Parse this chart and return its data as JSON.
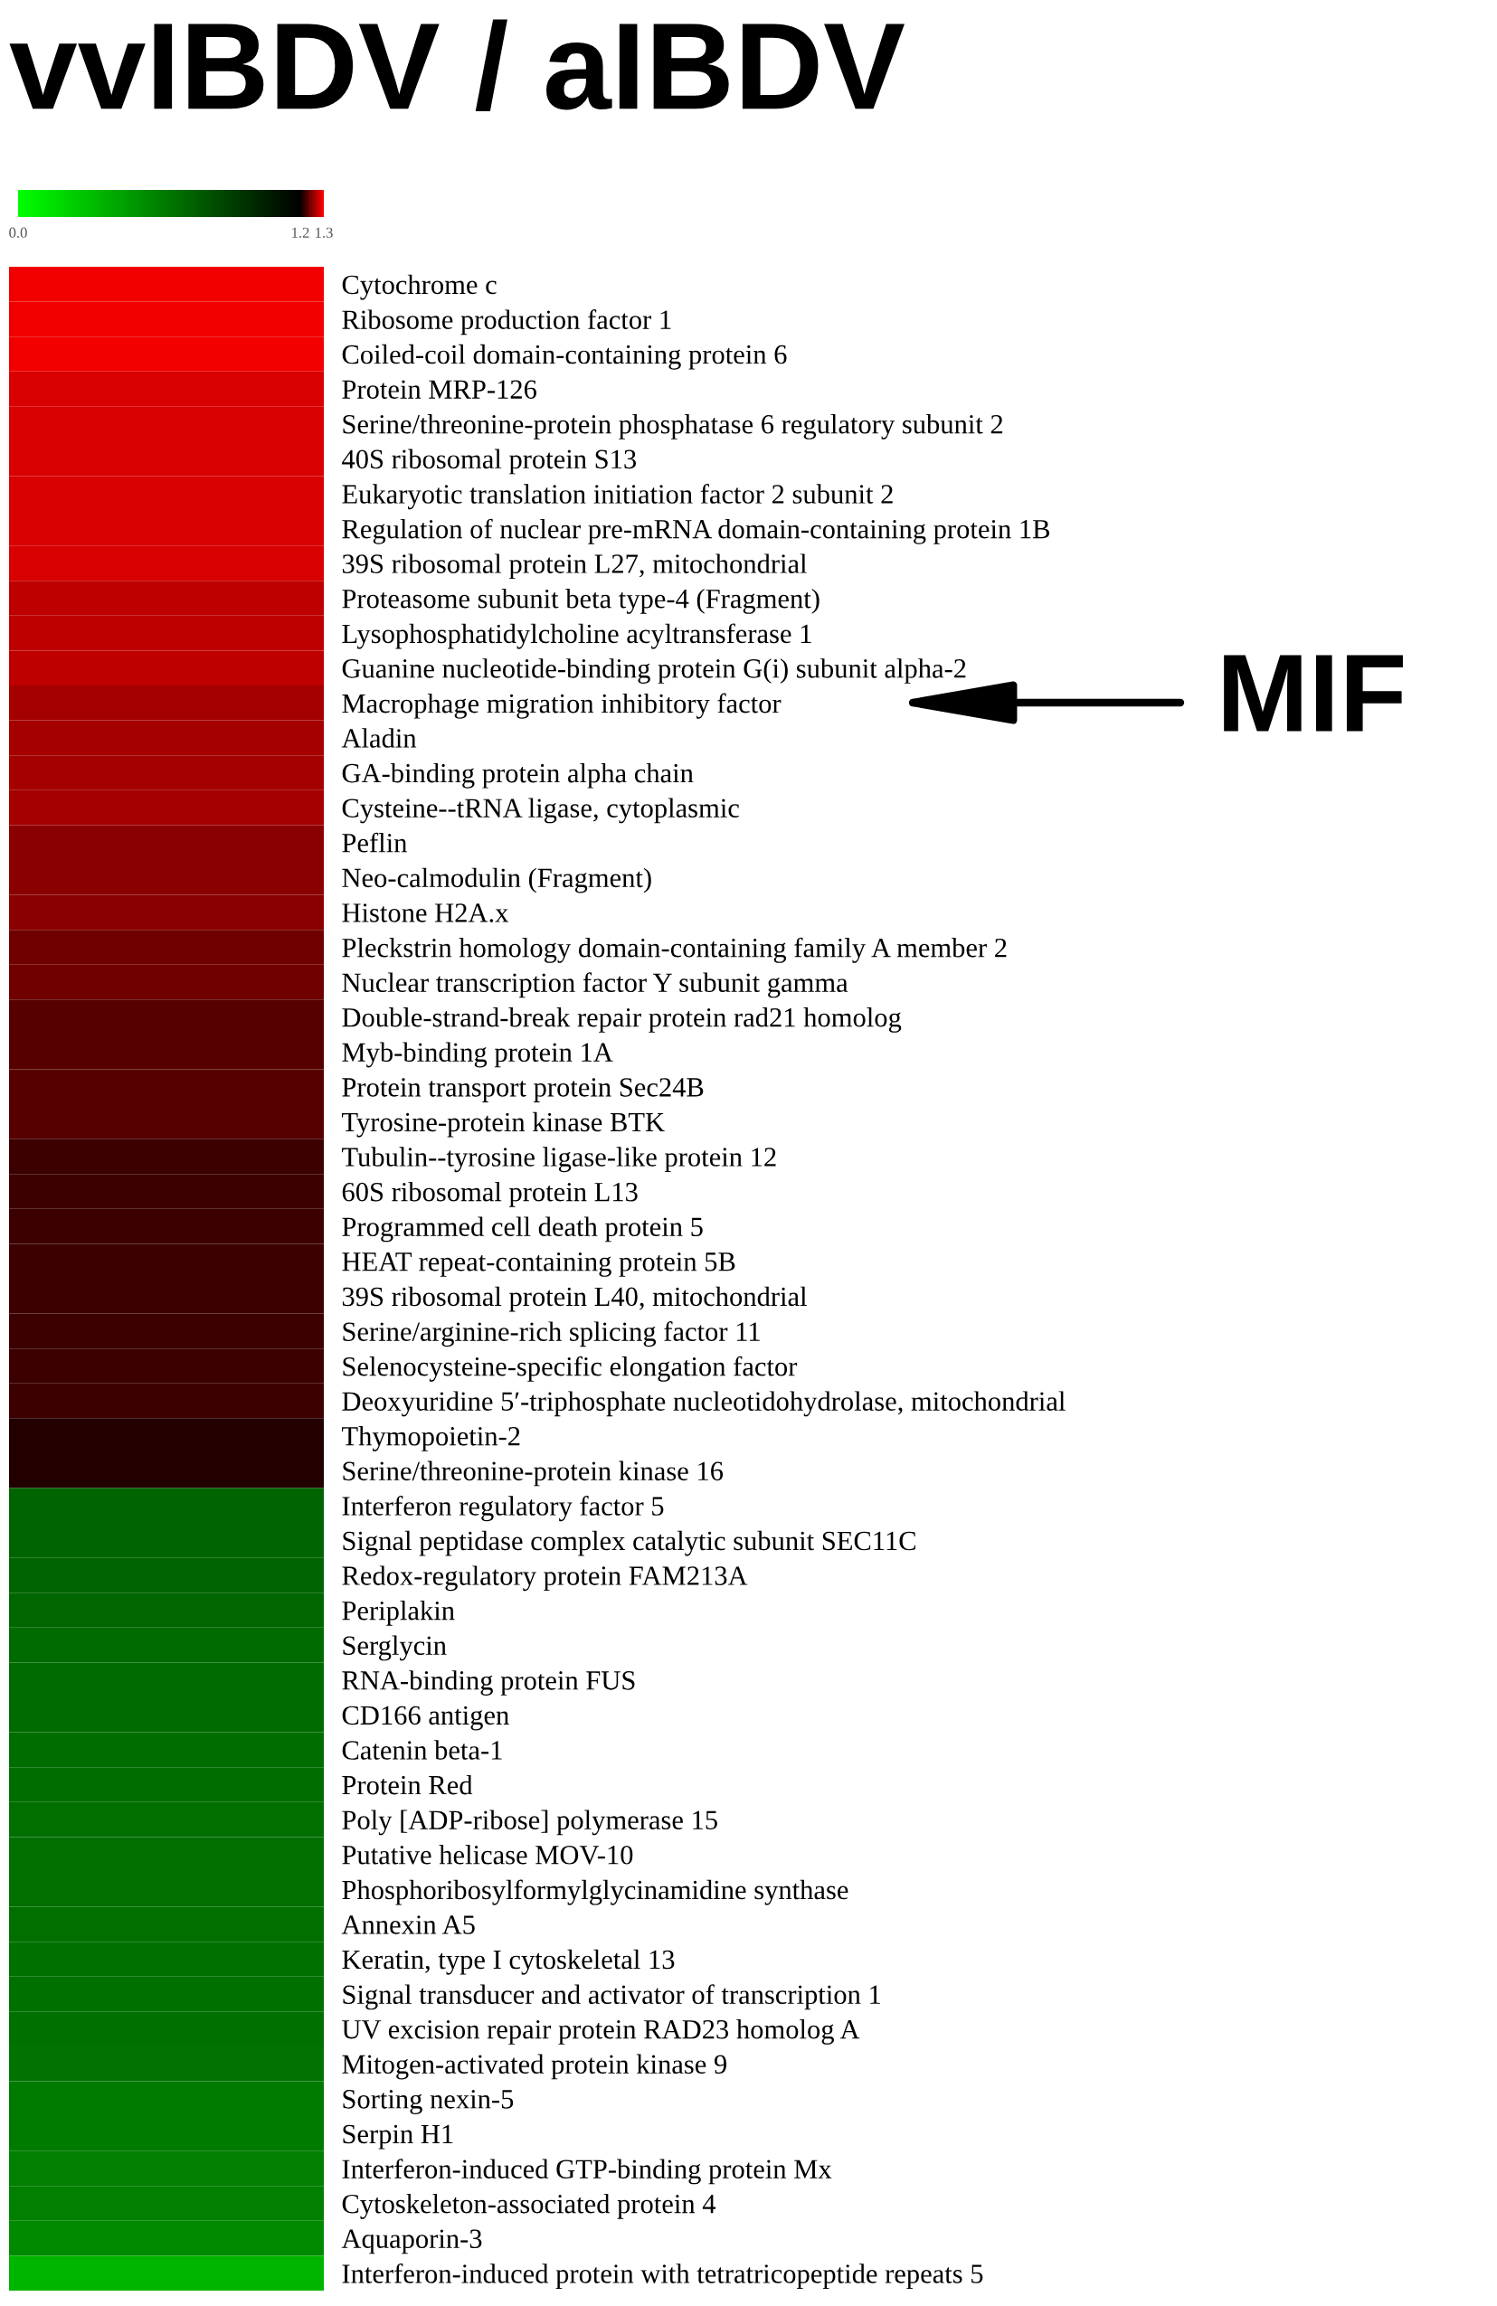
{
  "chart_data": {
    "type": "heatmap",
    "title": "vvIBDV / aIBDV",
    "categories": [
      null
    ],
    "y_categories": [
      "Cytochrome c",
      "Ribosome production factor 1",
      "Coiled-coil domain-containing protein 6",
      "Protein MRP-126",
      "Serine/threonine-protein phosphatase 6 regulatory subunit 2",
      "40S ribosomal protein S13",
      "Eukaryotic translation initiation factor 2 subunit 2",
      "Regulation of nuclear pre-mRNA domain-containing protein 1B",
      "39S ribosomal protein L27, mitochondrial",
      "Proteasome subunit beta type-4 (Fragment)",
      "Lysophosphatidylcholine acyltransferase 1",
      "Guanine nucleotide-binding protein G(i) subunit alpha-2",
      "Macrophage migration inhibitory factor",
      "Aladin",
      "GA-binding protein alpha chain",
      "Cysteine--tRNA ligase, cytoplasmic",
      "Peflin",
      "Neo-calmodulin (Fragment)",
      "Histone H2A.x",
      "Pleckstrin homology domain-containing family A member 2",
      "Nuclear transcription factor Y subunit gamma",
      "Double-strand-break repair protein rad21 homolog",
      "Myb-binding protein 1A",
      "Protein transport protein Sec24B",
      "Tyrosine-protein kinase BTK",
      "Tubulin--tyrosine ligase-like protein 12",
      "60S ribosomal protein L13",
      "Programmed cell death protein 5",
      "HEAT repeat-containing protein 5B",
      "39S ribosomal protein L40, mitochondrial",
      "Serine/arginine-rich splicing factor 11",
      "Selenocysteine-specific elongation factor",
      "Deoxyuridine 5′-triphosphate nucleotidohydrolase, mitochondrial",
      "Thymopoietin-2",
      "Serine/threonine-protein kinase 16",
      "Interferon regulatory factor 5",
      "Signal peptidase complex catalytic subunit SEC11C",
      "Redox-regulatory protein FAM213A",
      "Periplakin",
      "Serglycin",
      "RNA-binding protein FUS",
      "CD166 antigen",
      "Catenin beta-1",
      "Protein Red",
      "Poly [ADP-ribose] polymerase 15",
      "Putative helicase MOV-10",
      "Phosphoribosylformylglycinamidine synthase",
      "Annexin A5",
      "Keratin, type I cytoskeletal 13",
      "Signal transducer and activator of transcription 1",
      "UV excision repair protein RAD23 homolog A",
      "Mitogen-activated protein kinase 9",
      "Sorting nexin-5",
      "Serpin H1",
      "Interferon-induced GTP-binding protein Mx",
      "Cytoskeleton-associated protein 4",
      "Aquaporin-3",
      "Interferon-induced protein with tetratricopeptide repeats 5"
    ],
    "cells": [
      [
        1.29
      ],
      [
        1.29
      ],
      [
        1.29
      ],
      [
        1.28
      ],
      [
        1.28
      ],
      [
        1.28
      ],
      [
        1.28
      ],
      [
        1.28
      ],
      [
        1.28
      ],
      [
        1.27
      ],
      [
        1.27
      ],
      [
        1.27
      ],
      [
        1.26
      ],
      [
        1.26
      ],
      [
        1.26
      ],
      [
        1.26
      ],
      [
        1.25
      ],
      [
        1.25
      ],
      [
        1.25
      ],
      [
        1.24
      ],
      [
        1.24
      ],
      [
        1.23
      ],
      [
        1.23
      ],
      [
        1.23
      ],
      [
        1.23
      ],
      [
        1.22
      ],
      [
        1.22
      ],
      [
        1.22
      ],
      [
        1.22
      ],
      [
        1.22
      ],
      [
        1.22
      ],
      [
        1.22
      ],
      [
        1.22
      ],
      [
        1.21
      ],
      [
        1.21
      ],
      [
        0.73
      ],
      [
        0.73
      ],
      [
        0.73
      ],
      [
        0.72
      ],
      [
        0.7
      ],
      [
        0.7
      ],
      [
        0.7
      ],
      [
        0.69
      ],
      [
        0.69
      ],
      [
        0.68
      ],
      [
        0.68
      ],
      [
        0.68
      ],
      [
        0.68
      ],
      [
        0.67
      ],
      [
        0.67
      ],
      [
        0.67
      ],
      [
        0.66
      ],
      [
        0.62
      ],
      [
        0.62
      ],
      [
        0.6
      ],
      [
        0.6
      ],
      [
        0.55
      ],
      [
        0.35
      ]
    ],
    "clim": [
      0.0,
      1.3
    ],
    "cticks": [
      {
        "value": 0.0,
        "label": "0.0"
      },
      1.2,
      1.3
    ],
    "annotations": [
      "MIF"
    ]
  }
}
